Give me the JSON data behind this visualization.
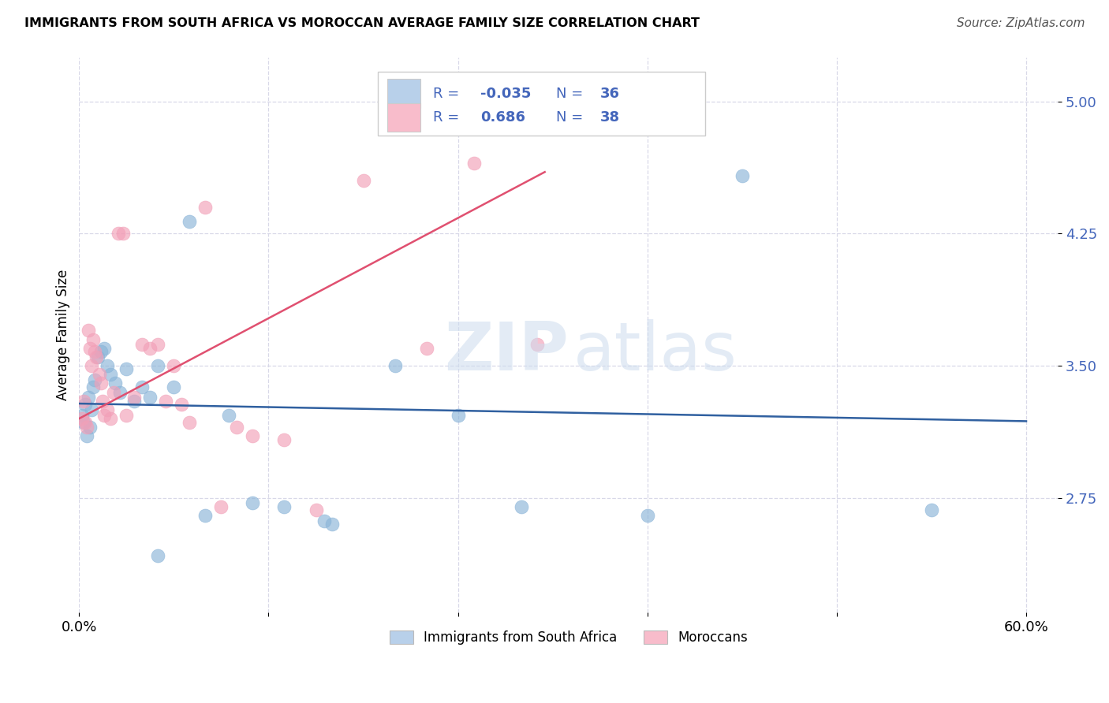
{
  "title": "IMMIGRANTS FROM SOUTH AFRICA VS MOROCCAN AVERAGE FAMILY SIZE CORRELATION CHART",
  "source": "Source: ZipAtlas.com",
  "ylabel": "Average Family Size",
  "xlim": [
    0.0,
    0.62
  ],
  "ylim": [
    2.1,
    5.25
  ],
  "yticks": [
    2.75,
    3.5,
    4.25,
    5.0
  ],
  "xtick_positions": [
    0.0,
    0.12,
    0.24,
    0.36,
    0.48,
    0.6
  ],
  "xtick_labels": [
    "0.0%",
    "",
    "",
    "",
    "",
    "60.0%"
  ],
  "background_color": "#ffffff",
  "grid_color": "#d8d8e8",
  "color_blue": "#8ab4d8",
  "color_pink": "#f2a0b8",
  "color_blue_line": "#3060a0",
  "color_pink_line": "#e05070",
  "color_blue_legend": "#b8d0ea",
  "color_pink_legend": "#f8bccb",
  "legend_color": "#4466bb",
  "r1_val": "-0.035",
  "n1_val": "36",
  "r2_val": "0.686",
  "n2_val": "38",
  "sa_x": [
    0.002,
    0.003,
    0.004,
    0.005,
    0.006,
    0.007,
    0.008,
    0.009,
    0.01,
    0.012,
    0.014,
    0.016,
    0.018,
    0.02,
    0.023,
    0.026,
    0.03,
    0.035,
    0.04,
    0.045,
    0.05,
    0.06,
    0.07,
    0.08,
    0.095,
    0.11,
    0.13,
    0.155,
    0.16,
    0.24,
    0.28,
    0.36,
    0.42,
    0.54,
    0.05,
    0.2
  ],
  "sa_y": [
    3.22,
    3.18,
    3.28,
    3.1,
    3.32,
    3.15,
    3.25,
    3.38,
    3.42,
    3.55,
    3.58,
    3.6,
    3.5,
    3.45,
    3.4,
    3.35,
    3.48,
    3.3,
    3.38,
    3.32,
    3.5,
    3.38,
    4.32,
    2.65,
    3.22,
    2.72,
    2.7,
    2.62,
    2.6,
    3.22,
    2.7,
    2.65,
    4.58,
    2.68,
    2.42,
    3.5
  ],
  "mo_x": [
    0.002,
    0.003,
    0.004,
    0.005,
    0.006,
    0.007,
    0.008,
    0.009,
    0.01,
    0.011,
    0.013,
    0.014,
    0.015,
    0.016,
    0.018,
    0.02,
    0.022,
    0.025,
    0.028,
    0.03,
    0.035,
    0.04,
    0.045,
    0.05,
    0.055,
    0.06,
    0.065,
    0.07,
    0.08,
    0.09,
    0.1,
    0.11,
    0.13,
    0.15,
    0.18,
    0.22,
    0.25,
    0.29
  ],
  "mo_y": [
    3.2,
    3.3,
    3.18,
    3.15,
    3.7,
    3.6,
    3.5,
    3.65,
    3.58,
    3.55,
    3.45,
    3.4,
    3.3,
    3.22,
    3.25,
    3.2,
    3.35,
    4.25,
    4.25,
    3.22,
    3.32,
    3.62,
    3.6,
    3.62,
    3.3,
    3.5,
    3.28,
    3.18,
    4.4,
    2.7,
    3.15,
    3.1,
    3.08,
    2.68,
    4.55,
    3.6,
    4.65,
    3.62
  ],
  "sa_line_x0": 0.0,
  "sa_line_x1": 0.6,
  "sa_line_y0": 3.285,
  "sa_line_y1": 3.185,
  "mo_line_x0": 0.0,
  "mo_line_x1": 0.295,
  "mo_line_y0": 3.2,
  "mo_line_y1": 4.6
}
